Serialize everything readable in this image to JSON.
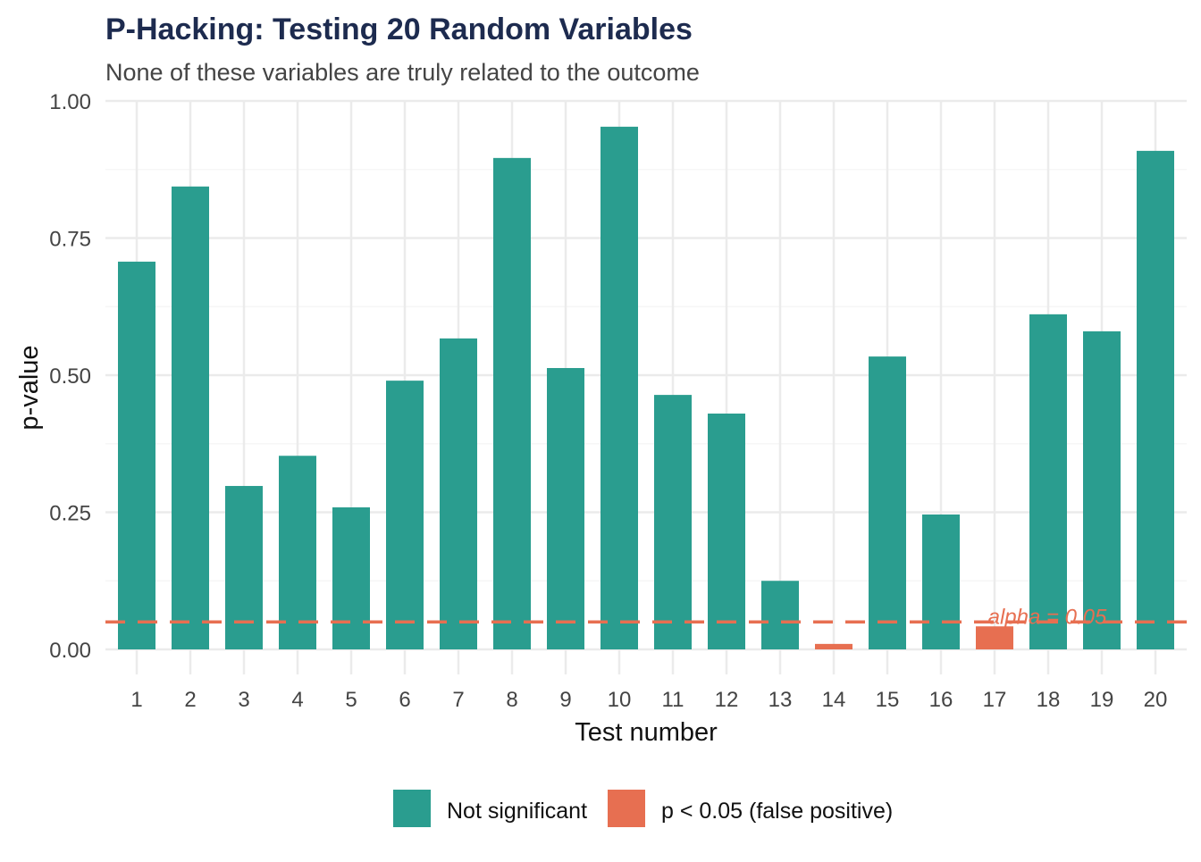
{
  "chart_data": {
    "type": "bar",
    "title": "P-Hacking: Testing 20 Random Variables",
    "subtitle": "None of these variables are truly related to the outcome",
    "xlabel": "Test number",
    "ylabel": "p-value",
    "ylim": [
      0,
      1
    ],
    "yticks": [
      "0.00",
      "0.25",
      "0.50",
      "0.75",
      "1.00"
    ],
    "ytick_values": [
      0,
      0.25,
      0.5,
      0.75,
      1
    ],
    "categories": [
      "1",
      "2",
      "3",
      "4",
      "5",
      "6",
      "7",
      "8",
      "9",
      "10",
      "11",
      "12",
      "13",
      "14",
      "15",
      "16",
      "17",
      "18",
      "19",
      "20"
    ],
    "values": [
      0.707,
      0.844,
      0.298,
      0.353,
      0.259,
      0.49,
      0.567,
      0.896,
      0.513,
      0.953,
      0.464,
      0.43,
      0.125,
      0.01,
      0.534,
      0.246,
      0.042,
      0.611,
      0.58,
      0.909
    ],
    "threshold": 0.05,
    "threshold_label": "alpha = 0.05",
    "grid": true,
    "legend_position": "bottom",
    "legend": [
      {
        "label": "Not significant",
        "color": "#2A9D8F"
      },
      {
        "label": "p < 0.05 (false positive)",
        "color": "#E76F51"
      }
    ]
  }
}
